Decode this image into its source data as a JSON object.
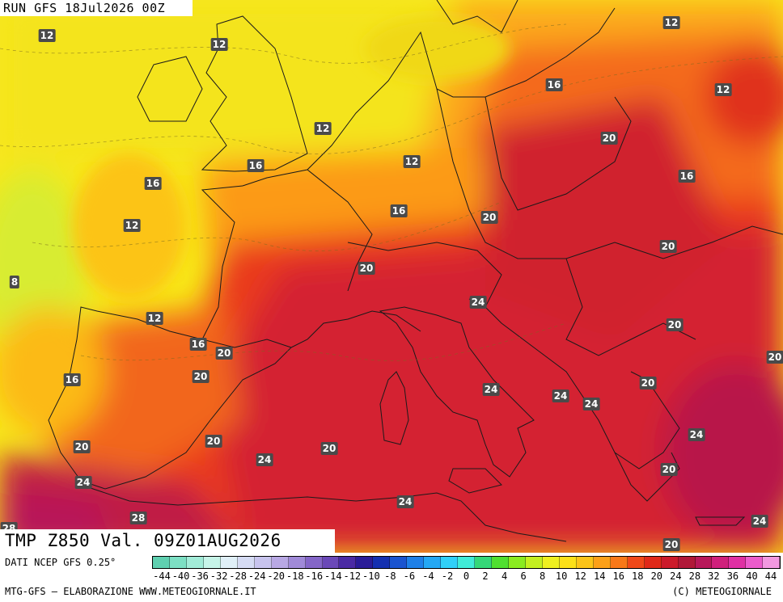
{
  "header": {
    "run": "RUN GFS 18Jul2026 00Z"
  },
  "title": "TMP Z850 Val. 09Z01AUG2026",
  "map": {
    "labels": [
      "12",
      "12",
      "12",
      "12",
      "16",
      "12",
      "12",
      "16",
      "16",
      "16",
      "20",
      "20",
      "16",
      "8",
      "20",
      "12",
      "24",
      "16",
      "20",
      "20",
      "20",
      "20",
      "24",
      "24",
      "24",
      "20",
      "20",
      "24",
      "20",
      "24",
      "24",
      "20",
      "28",
      "24",
      "20"
    ]
  },
  "footer": {
    "data_source": "DATI NCEP GFS 0.25°",
    "credit_left": "MTG-GFS — ELABORAZIONE WWW.METEOGIORNALE.IT",
    "credit_right": "(C) METEOGIORNALE"
  },
  "legend": {
    "ticks": [
      "-44",
      "-40",
      "-36",
      "-32",
      "-28",
      "-24",
      "-20",
      "-18",
      "-16",
      "-14",
      "-12",
      "-10",
      "-8",
      "-6",
      "-4",
      "-2",
      "0",
      "2",
      "4",
      "6",
      "8",
      "10",
      "12",
      "14",
      "16",
      "18",
      "20",
      "24",
      "28",
      "32",
      "36",
      "40",
      "44"
    ],
    "colors": [
      "#5fd0b0",
      "#7de0c4",
      "#a2ecd8",
      "#c6f4e8",
      "#e0f0f8",
      "#d6dcf4",
      "#c8c4ee",
      "#b8a8e4",
      "#a08ad8",
      "#8466c8",
      "#6a48b8",
      "#4a2aa4",
      "#2a1c98",
      "#1430b0",
      "#1a54d0",
      "#1e80e8",
      "#24a8f4",
      "#30d0f8",
      "#40ecd8",
      "#34d878",
      "#50e030",
      "#8aec20",
      "#c4f020",
      "#eef020",
      "#fce018",
      "#fcc418",
      "#fca018",
      "#f87818",
      "#f04818",
      "#e02818",
      "#cc1a2a",
      "#b01838",
      "#b8185a",
      "#d0207c",
      "#e030a4",
      "#ec5ccc",
      "#f298e0"
    ],
    "tick_count": 33
  }
}
